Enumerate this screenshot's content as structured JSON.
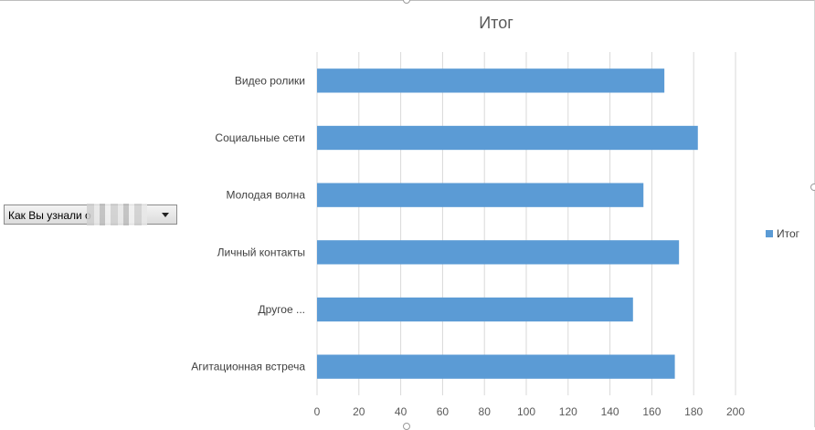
{
  "filter": {
    "label": "Как Вы узнали о",
    "arrow_icon": "dropdown-arrow-icon"
  },
  "chart_data": {
    "type": "bar",
    "orientation": "horizontal",
    "title": "Итог",
    "categories": [
      "Видео ролики",
      "Социальные сети",
      "Молодая волна",
      "Личный контакты",
      "Другое ...",
      "Агитационная встреча"
    ],
    "series": [
      {
        "name": "Итог",
        "color": "#5b9bd5",
        "values": [
          166,
          182,
          156,
          173,
          151,
          171
        ]
      }
    ],
    "xlim": [
      0,
      200
    ],
    "xticks": [
      0,
      20,
      40,
      60,
      80,
      100,
      120,
      140,
      160,
      180,
      200
    ],
    "grid": true,
    "legend_position": "right"
  }
}
